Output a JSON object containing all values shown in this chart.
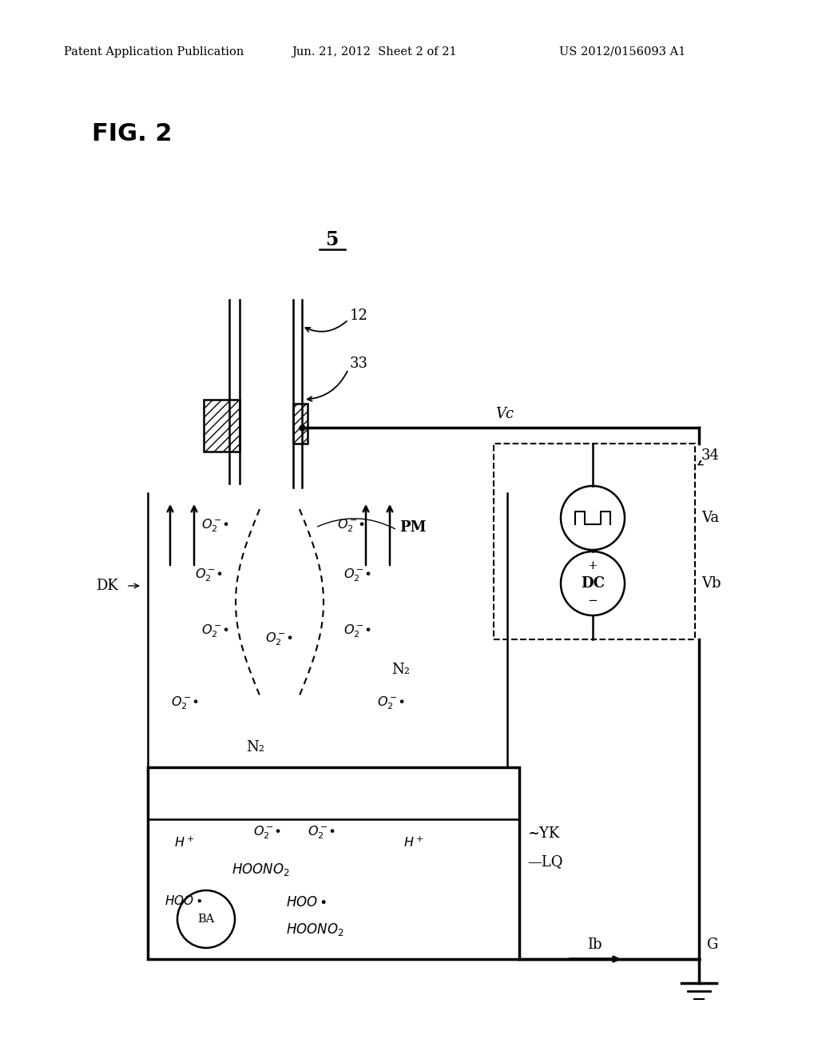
{
  "bg_color": "#ffffff",
  "header_left": "Patent Application Publication",
  "header_mid": "Jun. 21, 2012  Sheet 2 of 21",
  "header_right": "US 2012/0156093 A1",
  "fig_label": "FIG. 2",
  "label_5": "5",
  "label_12": "12",
  "label_33": "33",
  "label_Vc": "Vc",
  "label_34": "34",
  "label_Va": "Va",
  "label_Vb": "Vb",
  "label_DK": "DK",
  "label_PM": "PM",
  "label_N2_1": "N₂",
  "label_N2_2": "N₂",
  "label_YK": "YK",
  "label_LQ": "LQ",
  "label_G": "G",
  "label_Ib": "Ib",
  "label_BA": "BA",
  "label_DC": "DC"
}
